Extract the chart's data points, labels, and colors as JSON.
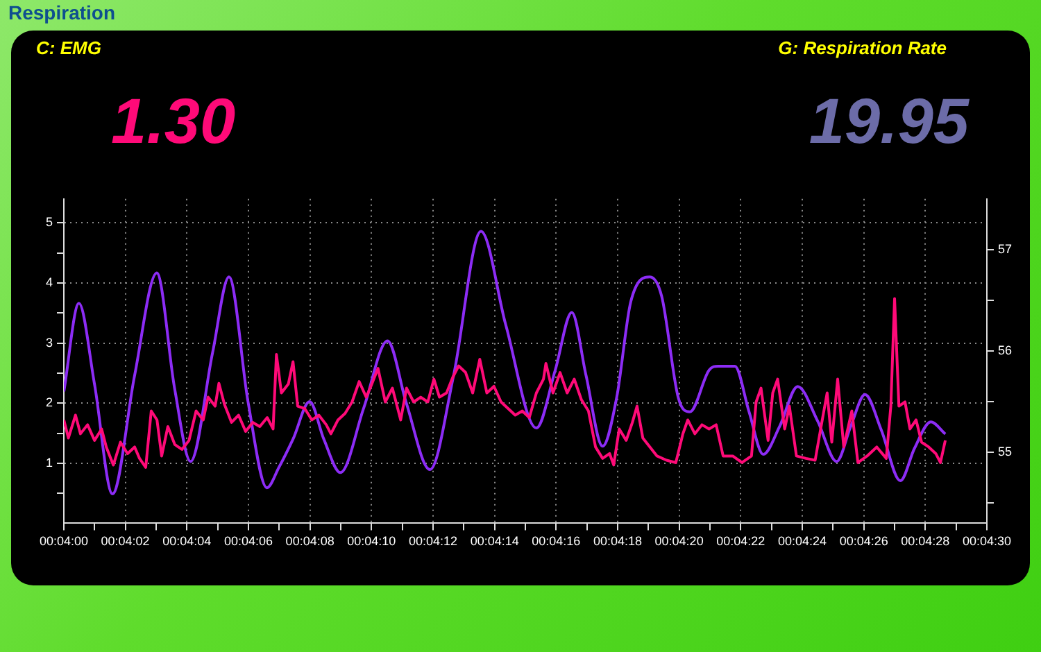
{
  "chart_data": {
    "type": "line",
    "title": "Respiration",
    "annotations": [
      "C: EMG",
      "1.30",
      "G: Respiration Rate",
      "19.95"
    ],
    "marker": "none",
    "line_style": "solid",
    "grid": true,
    "xlim": [
      0.066667,
      0.075
    ],
    "xticks": [
      {
        "value": 0.066667,
        "label": "00:04:00"
      },
      {
        "value": 0.066944,
        "label": null
      },
      {
        "value": 0.067222,
        "label": "00:04:02"
      },
      {
        "value": 0.0675,
        "label": null
      },
      {
        "value": 0.067778,
        "label": "00:04:04"
      },
      {
        "value": 0.068056,
        "label": null
      },
      {
        "value": 0.068333,
        "label": "00:04:06"
      },
      {
        "value": 0.068611,
        "label": null
      },
      {
        "value": 0.068889,
        "label": "00:04:08"
      },
      {
        "value": 0.069167,
        "label": null
      },
      {
        "value": 0.069444,
        "label": "00:04:10"
      },
      {
        "value": 0.069722,
        "label": null
      },
      {
        "value": 0.07,
        "label": "00:04:12"
      },
      {
        "value": 0.070278,
        "label": null
      },
      {
        "value": 0.070556,
        "label": "00:04:14"
      },
      {
        "value": 0.070833,
        "label": null
      },
      {
        "value": 0.071111,
        "label": "00:04:16"
      },
      {
        "value": 0.071389,
        "label": null
      },
      {
        "value": 0.071667,
        "label": "00:04:18"
      },
      {
        "value": 0.071944,
        "label": null
      },
      {
        "value": 0.072222,
        "label": "00:04:20"
      },
      {
        "value": 0.0725,
        "label": null
      },
      {
        "value": 0.072778,
        "label": "00:04:22"
      },
      {
        "value": 0.073056,
        "label": null
      },
      {
        "value": 0.073333,
        "label": "00:04:24"
      },
      {
        "value": 0.073611,
        "label": null
      },
      {
        "value": 0.073889,
        "label": "00:04:26"
      },
      {
        "value": 0.074167,
        "label": null
      },
      {
        "value": 0.074444,
        "label": "00:04:28"
      },
      {
        "value": 0.074722,
        "label": null
      },
      {
        "value": 0.075,
        "label": "00:04:30"
      }
    ],
    "ylim": [
      0,
      5.4
    ],
    "yticks": [
      {
        "value": 0.5,
        "label": null
      },
      1,
      {
        "value": 1.5,
        "label": null
      },
      2,
      {
        "value": 2.5,
        "label": null
      },
      3,
      {
        "value": 3.5,
        "label": null
      },
      4,
      {
        "value": 4.5,
        "label": null
      },
      5
    ],
    "y2lim": [
      54.3,
      57.5
    ],
    "y2ticks": [
      {
        "value": 54.5,
        "label": null
      },
      55,
      {
        "value": 55.5,
        "label": null
      },
      56,
      {
        "value": 56.5,
        "label": null
      },
      57
    ],
    "series": [
      {
        "color": "#ff0a78",
        "axis": "y",
        "x": [
          0.066667,
          0.066708,
          0.066772,
          0.066817,
          0.066881,
          0.066944,
          0.067008,
          0.06705,
          0.067114,
          0.067178,
          0.067242,
          0.067306,
          0.06735,
          0.067406,
          0.067456,
          0.067508,
          0.06755,
          0.067606,
          0.067669,
          0.067733,
          0.067797,
          0.067861,
          0.067925,
          0.067969,
          0.068033,
          0.068067,
          0.068117,
          0.068181,
          0.068244,
          0.068308,
          0.068372,
          0.068436,
          0.068503,
          0.068556,
          0.068586,
          0.068631,
          0.068694,
          0.068736,
          0.068778,
          0.068842,
          0.068906,
          0.068969,
          0.069036,
          0.069078,
          0.069142,
          0.069206,
          0.069269,
          0.069333,
          0.069397,
          0.069439,
          0.069503,
          0.069569,
          0.069633,
          0.069708,
          0.069761,
          0.069825,
          0.069889,
          0.069953,
          0.070008,
          0.070058,
          0.070122,
          0.070178,
          0.070231,
          0.070294,
          0.070358,
          0.070422,
          0.070486,
          0.07055,
          0.070614,
          0.070678,
          0.070742,
          0.070806,
          0.070869,
          0.070933,
          0.070997,
          0.071019,
          0.071083,
          0.071147,
          0.071211,
          0.071275,
          0.071339,
          0.071403,
          0.071467,
          0.071531,
          0.071594,
          0.071631,
          0.071681,
          0.071744,
          0.0718,
          0.071842,
          0.071894,
          0.071958,
          0.072022,
          0.072108,
          0.072192,
          0.072256,
          0.0723,
          0.072364,
          0.072428,
          0.072492,
          0.072556,
          0.072619,
          0.072706,
          0.072789,
          0.072875,
          0.072917,
          0.072961,
          0.073025,
          0.073067,
          0.073111,
          0.073175,
          0.073217,
          0.073281,
          0.073367,
          0.07345,
          0.073514,
          0.073558,
          0.0736,
          0.073653,
          0.073708,
          0.073781,
          0.073836,
          0.073919,
          0.074006,
          0.074092,
          0.074133,
          0.074167,
          0.074206,
          0.074261,
          0.074306,
          0.074361,
          0.074411,
          0.074475,
          0.074539,
          0.074581,
          0.074625
        ],
        "values": [
          1.72,
          1.42,
          1.8,
          1.49,
          1.64,
          1.38,
          1.57,
          1.27,
          0.97,
          1.35,
          1.16,
          1.27,
          1.08,
          0.93,
          1.87,
          1.72,
          1.12,
          1.61,
          1.31,
          1.23,
          1.38,
          1.87,
          1.72,
          2.1,
          1.95,
          2.33,
          1.98,
          1.68,
          1.8,
          1.53,
          1.68,
          1.61,
          1.76,
          1.57,
          2.81,
          2.17,
          2.32,
          2.69,
          1.95,
          1.91,
          1.72,
          1.8,
          1.64,
          1.49,
          1.72,
          1.83,
          2.02,
          2.36,
          2.1,
          2.28,
          2.58,
          2.02,
          2.25,
          1.72,
          2.25,
          2.02,
          2.1,
          2.02,
          2.4,
          2.1,
          2.17,
          2.43,
          2.62,
          2.51,
          2.17,
          2.73,
          2.17,
          2.28,
          2.02,
          1.91,
          1.8,
          1.87,
          1.76,
          2.17,
          2.4,
          2.66,
          2.17,
          2.51,
          2.17,
          2.4,
          2.06,
          1.87,
          1.27,
          1.08,
          1.16,
          0.97,
          1.57,
          1.38,
          1.68,
          1.95,
          1.42,
          1.27,
          1.12,
          1.05,
          1.01,
          1.49,
          1.72,
          1.49,
          1.64,
          1.57,
          1.64,
          1.12,
          1.12,
          1.01,
          1.12,
          2.02,
          2.25,
          1.38,
          2.17,
          2.4,
          1.57,
          1.95,
          1.12,
          1.08,
          1.05,
          1.72,
          2.17,
          1.35,
          2.4,
          1.27,
          1.87,
          1.01,
          1.12,
          1.27,
          1.08,
          1.95,
          3.74,
          1.95,
          2.02,
          1.57,
          1.72,
          1.35,
          1.27,
          1.16,
          1.01,
          1.38
        ]
      },
      {
        "color": "#8c2cf5",
        "axis": "y2",
        "x": [
          0.066667,
          0.066803,
          0.066944,
          0.067106,
          0.067306,
          0.067506,
          0.067667,
          0.067811,
          0.068011,
          0.068158,
          0.068331,
          0.0685,
          0.068608,
          0.068736,
          0.068886,
          0.069014,
          0.069164,
          0.069375,
          0.069589,
          0.069758,
          0.069972,
          0.070186,
          0.070433,
          0.070656,
          0.070933,
          0.071103,
          0.071253,
          0.071381,
          0.071531,
          0.071658,
          0.071786,
          0.071958,
          0.072064,
          0.072214,
          0.072319,
          0.072492,
          0.072575,
          0.072725,
          0.072853,
          0.072981,
          0.073131,
          0.073292,
          0.073472,
          0.073644,
          0.073772,
          0.0739,
          0.074047,
          0.074219,
          0.074347,
          0.074494,
          0.074625
        ],
        "values": [
          55.6,
          56.47,
          55.67,
          54.59,
          55.76,
          56.77,
          55.63,
          54.91,
          55.99,
          56.73,
          55.49,
          54.65,
          54.85,
          55.13,
          55.5,
          55.13,
          54.8,
          55.44,
          56.1,
          55.49,
          54.83,
          55.76,
          57.18,
          56.26,
          55.24,
          55.81,
          56.38,
          55.76,
          55.06,
          55.54,
          56.49,
          56.73,
          56.54,
          55.54,
          55.4,
          55.81,
          55.85,
          55.85,
          55.4,
          54.98,
          55.26,
          55.65,
          55.31,
          54.91,
          55.26,
          55.57,
          55.22,
          54.72,
          55.04,
          55.3,
          55.18
        ]
      }
    ]
  }
}
